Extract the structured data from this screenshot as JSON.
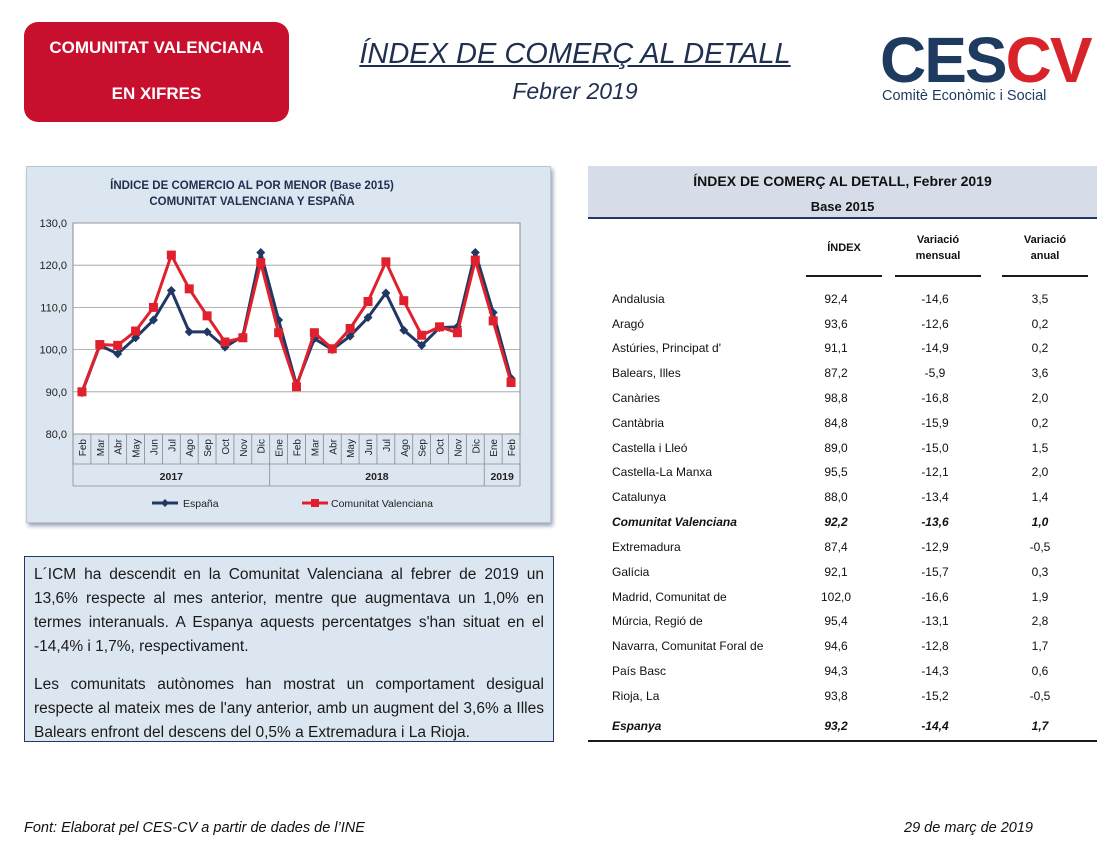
{
  "badge": {
    "line1": "COMUNITAT VALENCIANA",
    "line2": "EN XIFRES"
  },
  "header": {
    "title": "ÍNDEX DE COMERÇ AL DETALL",
    "subtitle": "Febrer 2019"
  },
  "logo": {
    "letters_dark": "CES",
    "letters_red": "CV",
    "subtitle": "Comitè Econòmic i Social",
    "dark_color": "#1e3a5f",
    "red_color": "#d8232a"
  },
  "chart_data": {
    "type": "line",
    "title": "ÍNDICE DE COMERCIO AL POR MENOR (Base 2015)",
    "subtitle": "COMUNITAT  VALENCIANA  Y ESPAÑA",
    "categories": [
      "Feb",
      "Mar",
      "Abr",
      "May",
      "Jun",
      "Jul",
      "Ago",
      "Sep",
      "Oct",
      "Nov",
      "Dic",
      "Ene",
      "Feb",
      "Mar",
      "Abr",
      "May",
      "Jun",
      "Jul",
      "Ago",
      "Sep",
      "Oct",
      "Nov",
      "Dic",
      "Ene",
      "Feb"
    ],
    "year_groups": [
      {
        "label": "2017",
        "start": 0,
        "end": 10
      },
      {
        "label": "2018",
        "start": 11,
        "end": 22
      },
      {
        "label": "2019",
        "start": 23,
        "end": 24
      }
    ],
    "ylim": [
      80,
      130
    ],
    "yticks": [
      "80,0",
      "90,0",
      "100,0",
      "110,0",
      "120,0",
      "130,0"
    ],
    "ytick_values": [
      80,
      90,
      100,
      110,
      120,
      130
    ],
    "grid": true,
    "legend_position": "bottom",
    "series": [
      {
        "name": "España",
        "color": "#1f3864",
        "marker": "diamond",
        "values": [
          89.8,
          101.0,
          99.0,
          102.8,
          107.0,
          114.0,
          104.2,
          104.2,
          100.6,
          103.2,
          123.0,
          107.0,
          91.6,
          102.6,
          100.0,
          103.2,
          107.6,
          113.4,
          104.6,
          101.0,
          105.2,
          105.4,
          123.0,
          108.8,
          93.2
        ]
      },
      {
        "name": "Comunitat Valenciana",
        "color": "#e0212d",
        "marker": "square",
        "values": [
          90.0,
          101.2,
          101.0,
          104.4,
          110.0,
          122.4,
          114.4,
          108.0,
          101.8,
          102.8,
          120.6,
          104.0,
          91.2,
          104.0,
          100.2,
          105.0,
          111.4,
          120.8,
          111.6,
          103.4,
          105.4,
          104.0,
          121.2,
          106.8,
          92.2
        ]
      }
    ]
  },
  "summary": {
    "p1": "L´ICM ha descendit en la Comunitat Valenciana al febrer de 2019 un 13,6% respecte al mes anterior, mentre que augmentava un 1,0% en termes interanuals. A Espanya aquests percentatges s'han situat en el -14,4% i 1,7%, respectivament.",
    "p2": "Les comunitats autònomes han mostrat un comportament desigual respecte al mateix mes de l'any anterior, amb un augment del 3,6% a Illes Balears enfront del descens del 0,5% a Extremadura i La Rioja."
  },
  "table": {
    "title": "ÍNDEX DE COMERÇ AL DETALL, Febrer 2019",
    "base": "Base 2015",
    "col_index": "ÍNDEX",
    "col_monthly_1": "Variació",
    "col_monthly_2": "mensual",
    "col_annual_1": "Variació",
    "col_annual_2": "anual",
    "rows": [
      {
        "name": "Andalusia",
        "index": "92,4",
        "monthly": "-14,6",
        "annual": "3,5"
      },
      {
        "name": "Aragó",
        "index": "93,6",
        "monthly": "-12,6",
        "annual": "0,2"
      },
      {
        "name": "Astúries, Principat d'",
        "index": "91,1",
        "monthly": "-14,9",
        "annual": "0,2"
      },
      {
        "name": "Balears, Illes",
        "index": "87,2",
        "monthly": "-5,9",
        "annual": "3,6"
      },
      {
        "name": "Canàries",
        "index": "98,8",
        "monthly": "-16,8",
        "annual": "2,0"
      },
      {
        "name": "Cantàbria",
        "index": "84,8",
        "monthly": "-15,9",
        "annual": "0,2"
      },
      {
        "name": "Castella i Lleó",
        "index": "89,0",
        "monthly": "-15,0",
        "annual": "1,5"
      },
      {
        "name": "Castella-La Manxa",
        "index": "95,5",
        "monthly": "-12,1",
        "annual": "2,0"
      },
      {
        "name": "Catalunya",
        "index": "88,0",
        "monthly": "-13,4",
        "annual": "1,4"
      },
      {
        "name": "Comunitat Valenciana",
        "index": "92,2",
        "monthly": "-13,6",
        "annual": "1,0"
      },
      {
        "name": "Extremadura",
        "index": "87,4",
        "monthly": "-12,9",
        "annual": "-0,5"
      },
      {
        "name": "Galícia",
        "index": "92,1",
        "monthly": "-15,7",
        "annual": "0,3"
      },
      {
        "name": "Madrid, Comunitat de",
        "index": "102,0",
        "monthly": "-16,6",
        "annual": "1,9"
      },
      {
        "name": "Múrcia, Regió de",
        "index": "95,4",
        "monthly": "-13,1",
        "annual": "2,8"
      },
      {
        "name": "Navarra, Comunitat Foral de",
        "index": "94,6",
        "monthly": "-12,8",
        "annual": "1,7"
      },
      {
        "name": "País Basc",
        "index": "94,3",
        "monthly": "-14,3",
        "annual": "0,6"
      },
      {
        "name": "Rioja, La",
        "index": "93,8",
        "monthly": "-15,2",
        "annual": "-0,5"
      },
      {
        "name": "Espanya",
        "index": "93,2",
        "monthly": "-14,4",
        "annual": "1,7"
      }
    ]
  },
  "footer": {
    "source": "Font: Elaborat pel CES-CV a partir de dades de l’INE",
    "date": "29 de març de 2019"
  }
}
